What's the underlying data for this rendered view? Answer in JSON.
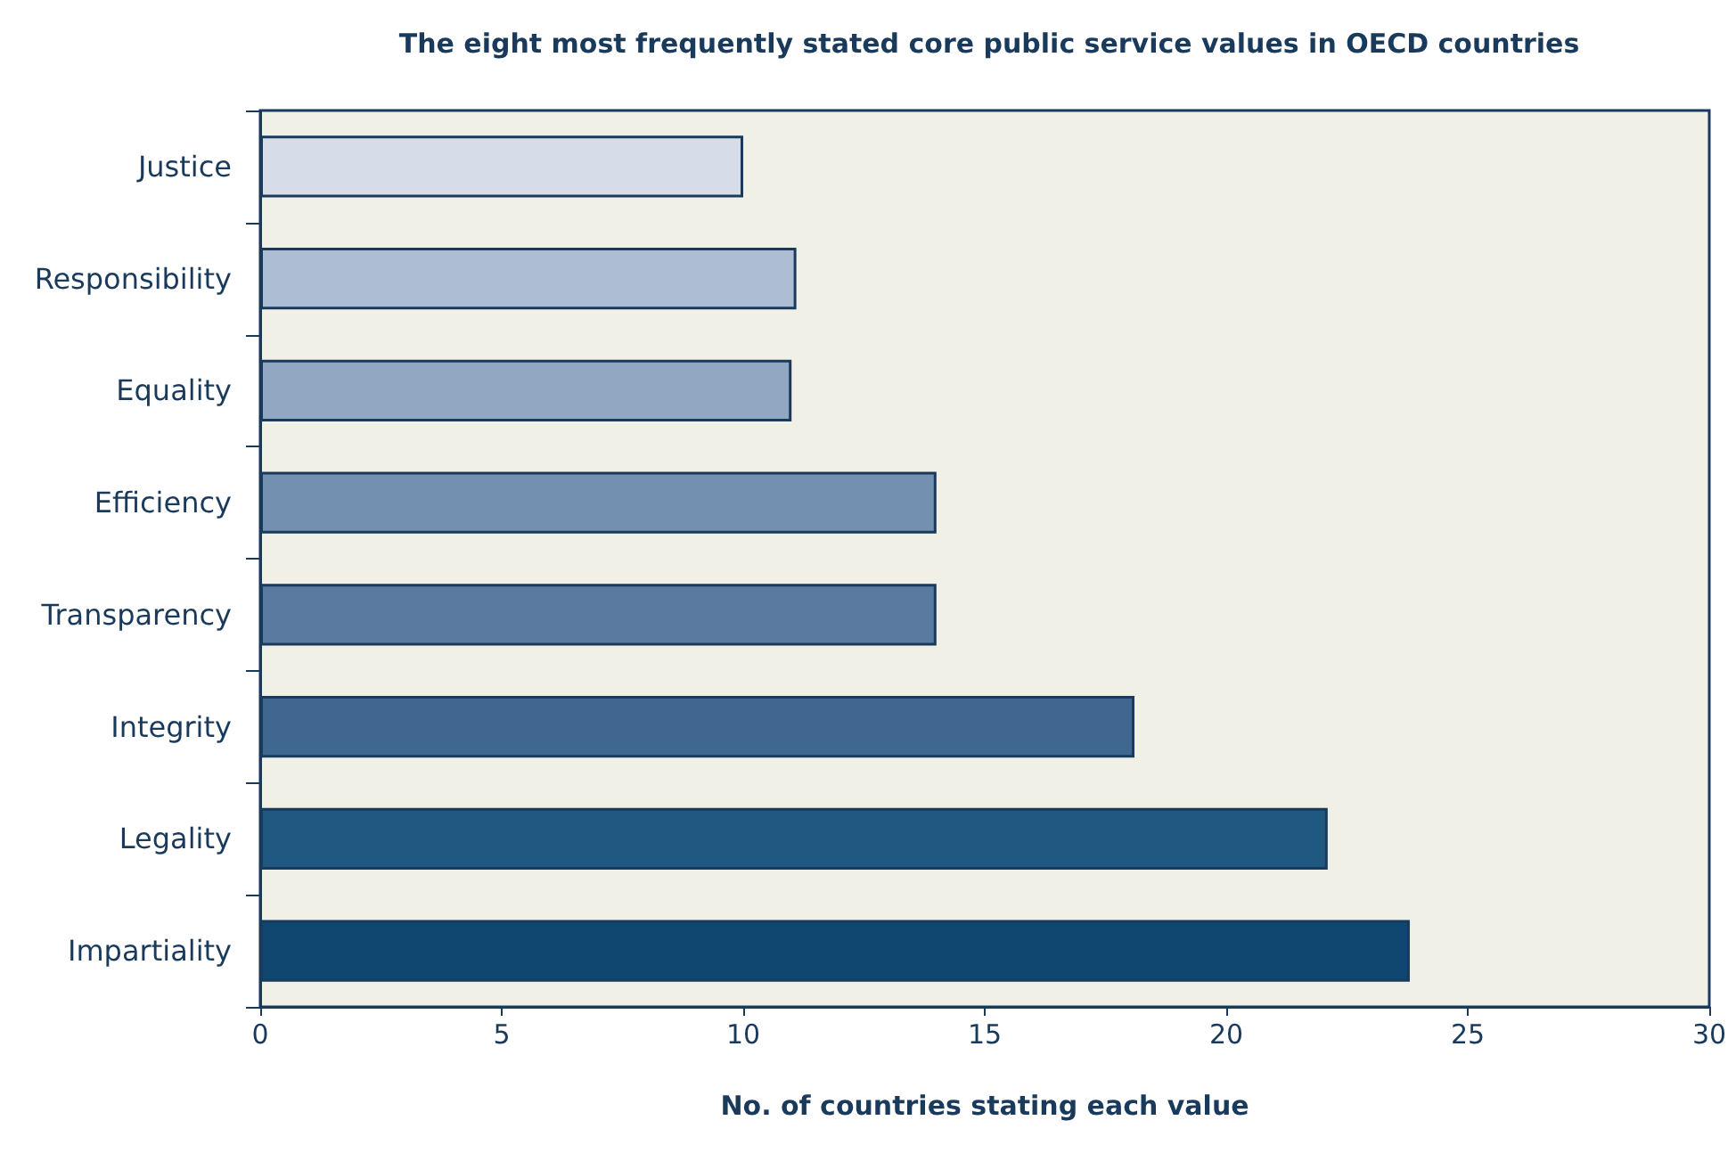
{
  "chart_data": {
    "type": "bar",
    "orientation": "horizontal",
    "title": "The eight most frequently stated core public service values in OECD countries",
    "xlabel": "No. of countries stating each value",
    "categories": [
      "Justice",
      "Responsibility",
      "Equality",
      "Efficiency",
      "Transparency",
      "Integrity",
      "Legality",
      "Impartiality"
    ],
    "values": [
      10,
      11.1,
      11,
      14,
      14,
      18.1,
      22.1,
      23.8
    ],
    "colors": [
      "#d6dde9",
      "#adbdd3",
      "#91a7c2",
      "#7490b0",
      "#5a7aa0",
      "#3f6790",
      "#1f5880",
      "#0f4770"
    ],
    "xlim": [
      0,
      30
    ],
    "xticks": [
      0,
      5,
      10,
      15,
      20,
      25,
      30
    ],
    "grid": false
  }
}
